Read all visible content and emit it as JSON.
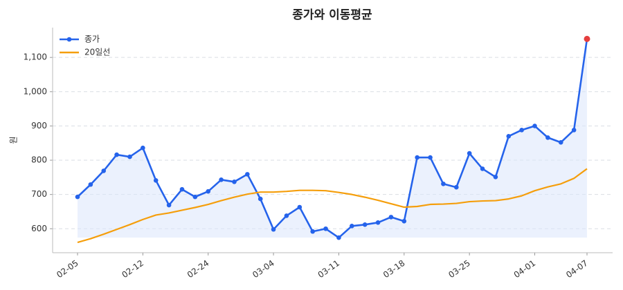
{
  "chart_data": {
    "type": "line",
    "title": "종가와 이동평균",
    "ylabel": "원",
    "categories": [
      "02-05",
      null,
      null,
      null,
      null,
      "02-12",
      null,
      null,
      null,
      null,
      "02-24",
      null,
      null,
      null,
      null,
      "03-04",
      null,
      null,
      null,
      null,
      "03-11",
      null,
      null,
      null,
      null,
      "03-18",
      null,
      null,
      null,
      null,
      "03-25",
      null,
      null,
      null,
      null,
      "04-01",
      null,
      null,
      null,
      "04-07"
    ],
    "series": [
      {
        "name": "종가",
        "color": "#2563eb",
        "markers": true,
        "fill": "#dbe6fb",
        "values": [
          693,
          729,
          769,
          816,
          810,
          836,
          741,
          669,
          715,
          693,
          709,
          743,
          737,
          759,
          687,
          598,
          638,
          663,
          592,
          600,
          574,
          608,
          612,
          618,
          634,
          622,
          808,
          808,
          731,
          721,
          820,
          775,
          751,
          870,
          888,
          900,
          866,
          852,
          888,
          1154
        ]
      },
      {
        "name": "20일선",
        "color": "#f59e0b",
        "markers": false,
        "values": [
          560,
          571,
          584,
          598,
          612,
          627,
          640,
          646,
          654,
          662,
          671,
          682,
          692,
          701,
          707,
          707,
          709,
          712,
          712,
          711,
          706,
          700,
          692,
          683,
          673,
          663,
          665,
          671,
          672,
          674,
          679,
          681,
          682,
          687,
          696,
          711,
          722,
          731,
          747,
          775
        ]
      }
    ],
    "last_point_color": "#e53e3e",
    "ylim": [
      530,
      1187
    ],
    "yticks": [
      600,
      700,
      800,
      900,
      {
        "value": 1000,
        "label": "1,000"
      },
      {
        "value": 1100,
        "label": "1,100"
      }
    ],
    "grid": true,
    "legend": "upper left"
  }
}
